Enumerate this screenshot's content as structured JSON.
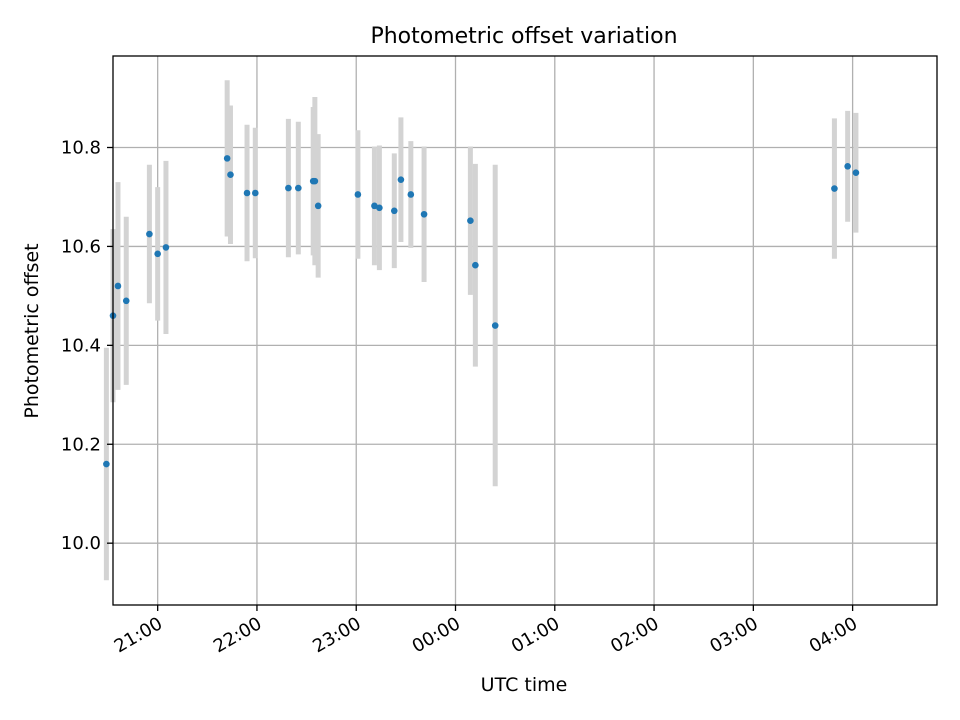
{
  "chart_data": {
    "type": "scatter",
    "title": "Photometric offset variation",
    "xlabel": "UTC time",
    "ylabel": "Photometric offset",
    "x_unit": "UTC time (HH:MM)",
    "xlim": [
      "20:33",
      "04:51"
    ],
    "ylim": [
      9.875,
      10.985
    ],
    "x_ticks": [
      "21:00",
      "22:00",
      "23:00",
      "00:00",
      "01:00",
      "02:00",
      "03:00",
      "04:00"
    ],
    "y_ticks": [
      10.0,
      10.2,
      10.4,
      10.6,
      10.8
    ],
    "y_tick_labels": [
      "10.0",
      "10.2",
      "10.4",
      "10.6",
      "10.8"
    ],
    "grid": true,
    "colors": {
      "points": "#1f77b4",
      "error_bars": "#d3d3d3"
    },
    "series": [
      {
        "points": [
          {
            "x": "20:29",
            "y": 10.16,
            "err": 0.235
          },
          {
            "x": "20:33",
            "y": 10.46,
            "err": 0.175
          },
          {
            "x": "20:36",
            "y": 10.52,
            "err": 0.21
          },
          {
            "x": "20:41",
            "y": 10.49,
            "err": 0.17
          },
          {
            "x": "20:55",
            "y": 10.625,
            "err": 0.14
          },
          {
            "x": "21:00",
            "y": 10.585,
            "err": 0.135
          },
          {
            "x": "21:05",
            "y": 10.598,
            "err": 0.175
          },
          {
            "x": "21:42",
            "y": 10.778,
            "err": 0.158
          },
          {
            "x": "21:44",
            "y": 10.745,
            "err": 0.14
          },
          {
            "x": "21:54",
            "y": 10.708,
            "err": 0.138
          },
          {
            "x": "21:59",
            "y": 10.708,
            "err": 0.132
          },
          {
            "x": "22:19",
            "y": 10.718,
            "err": 0.14
          },
          {
            "x": "22:25",
            "y": 10.718,
            "err": 0.134
          },
          {
            "x": "22:34",
            "y": 10.732,
            "err": 0.15
          },
          {
            "x": "22:35",
            "y": 10.732,
            "err": 0.17
          },
          {
            "x": "22:37",
            "y": 10.682,
            "err": 0.145
          },
          {
            "x": "23:01",
            "y": 10.705,
            "err": 0.13
          },
          {
            "x": "23:11",
            "y": 10.682,
            "err": 0.12
          },
          {
            "x": "23:14",
            "y": 10.678,
            "err": 0.126
          },
          {
            "x": "23:23",
            "y": 10.672,
            "err": 0.116
          },
          {
            "x": "23:27",
            "y": 10.735,
            "err": 0.126
          },
          {
            "x": "23:33",
            "y": 10.705,
            "err": 0.108
          },
          {
            "x": "23:41",
            "y": 10.665,
            "err": 0.137
          },
          {
            "x": "00:09",
            "y": 10.652,
            "err": 0.15
          },
          {
            "x": "00:12",
            "y": 10.562,
            "err": 0.205
          },
          {
            "x": "00:24",
            "y": 10.44,
            "err": 0.325
          },
          {
            "x": "03:49",
            "y": 10.717,
            "err": 0.142
          },
          {
            "x": "03:57",
            "y": 10.762,
            "err": 0.112
          },
          {
            "x": "04:02",
            "y": 10.749,
            "err": 0.121
          }
        ]
      }
    ]
  }
}
